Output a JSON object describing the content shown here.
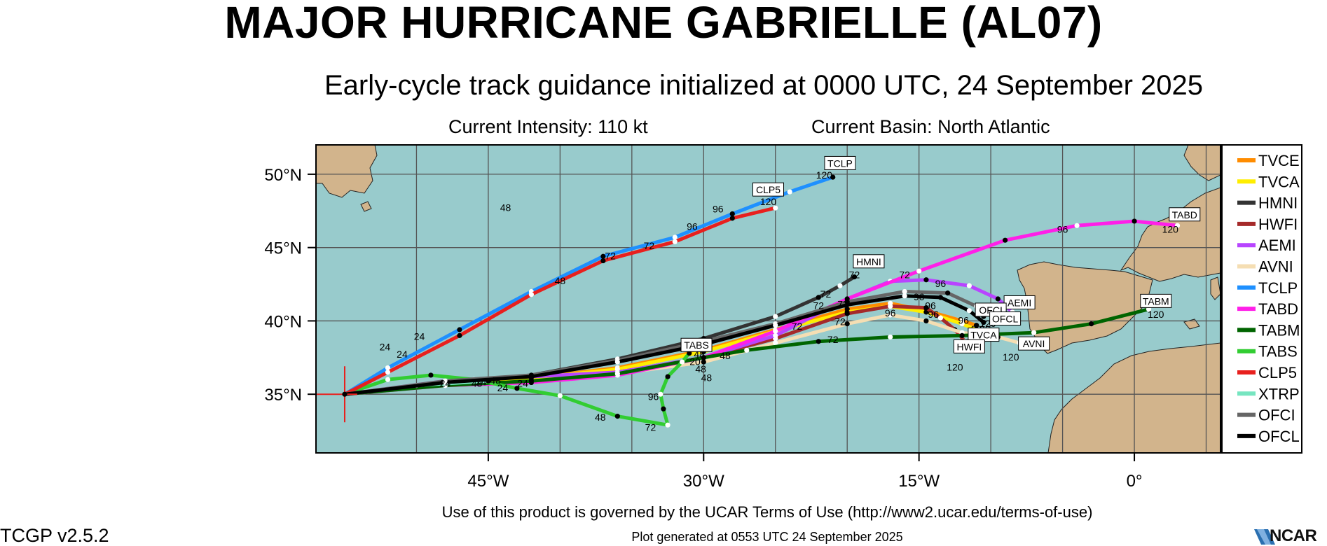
{
  "header": {
    "title": "MAJOR HURRICANE GABRIELLE (AL07)",
    "subtitle": "Early-cycle track guidance initialized at 0000 UTC, 24 September 2025",
    "intensity": "Current Intensity: 110 kt",
    "basin": "Current Basin: North Atlantic"
  },
  "footer": {
    "terms": "Use of this product is governed by the UCAR Terms of Use (http://www2.ucar.edu/terms-of-use)",
    "generated": "Plot generated at 0553 UTC   24 September 2025",
    "version": "TCGP v2.5.2",
    "logo": "NCAR"
  },
  "colors": {
    "ocean": "#98cbcc",
    "land": "#d2b48c",
    "grid": "#555555"
  },
  "map": {
    "lon_range": [
      -57,
      6
    ],
    "lat_range": [
      31,
      52
    ],
    "lon_ticks": [
      {
        "value": -45,
        "label": "45°W"
      },
      {
        "value": -30,
        "label": "30°W"
      },
      {
        "value": -15,
        "label": "15°W"
      },
      {
        "value": 0,
        "label": "0°"
      }
    ],
    "lat_ticks": [
      {
        "value": 50,
        "label": "50°N"
      },
      {
        "value": 45,
        "label": "45°N"
      },
      {
        "value": 40,
        "label": "40°N"
      },
      {
        "value": 35,
        "label": "35°N"
      }
    ],
    "grid_lons": [
      -50,
      -45,
      -40,
      -35,
      -30,
      -25,
      -20,
      -15,
      -10,
      -5,
      0,
      5
    ],
    "grid_lats": [
      35,
      40,
      45,
      50
    ],
    "storm_position": {
      "lon": -55,
      "lat": 35
    }
  },
  "tracks": [
    {
      "name": "TVCE",
      "color": "#ff8c00",
      "points": [
        [
          -55,
          35
        ],
        [
          -48,
          35.7
        ],
        [
          -42,
          36.1
        ],
        [
          -36,
          36.8
        ],
        [
          -30,
          38
        ],
        [
          -25,
          39.4
        ],
        [
          -20,
          40.8
        ],
        [
          -17,
          41.2
        ],
        [
          -14.5,
          40.7
        ],
        [
          -12,
          40.0
        ],
        [
          -11,
          39.7
        ]
      ],
      "labels": [],
      "tag": null
    },
    {
      "name": "TVCA",
      "color": "#ffee00",
      "points": [
        [
          -55,
          35
        ],
        [
          -48,
          35.7
        ],
        [
          -42,
          36.1
        ],
        [
          -36,
          36.7
        ],
        [
          -30,
          37.9
        ],
        [
          -25,
          39.3
        ],
        [
          -20,
          40.6
        ],
        [
          -17,
          41.0
        ],
        [
          -14.5,
          40.6
        ],
        [
          -12,
          39.8
        ],
        [
          -11,
          39.4
        ]
      ],
      "labels": [
        {
          "lon": -17,
          "lat": 40.3,
          "text": "96"
        },
        {
          "lon": -10.9,
          "lat": 38.5,
          "text": "120"
        }
      ],
      "tag": {
        "lon": -10.5,
        "lat": 38.8,
        "text": "TVCA"
      }
    },
    {
      "name": "HMNI",
      "color": "#333333",
      "points": [
        [
          -55,
          35
        ],
        [
          -48,
          35.8
        ],
        [
          -42,
          36.3
        ],
        [
          -36,
          37.4
        ],
        [
          -30,
          38.8
        ],
        [
          -25,
          40.3
        ],
        [
          -22,
          41.6
        ],
        [
          -20.5,
          42.4
        ],
        [
          -19.5,
          43.0
        ]
      ],
      "labels": [
        {
          "lon": -21.5,
          "lat": 41.6,
          "text": "72"
        },
        {
          "lon": -19.5,
          "lat": 42.9,
          "text": "72"
        }
      ],
      "tag": {
        "lon": -18.5,
        "lat": 43.8,
        "text": "HMNI"
      }
    },
    {
      "name": "HWFI",
      "color": "#a52a2a",
      "points": [
        [
          -55,
          35
        ],
        [
          -48,
          35.6
        ],
        [
          -42,
          35.8
        ],
        [
          -36,
          36.5
        ],
        [
          -30,
          37.5
        ],
        [
          -25,
          38.8
        ],
        [
          -20,
          40.5
        ],
        [
          -17,
          41.0
        ],
        [
          -14.5,
          40.9
        ],
        [
          -13.5,
          40.2
        ],
        [
          -12.5,
          39.4
        ],
        [
          -11.8,
          38.6
        ]
      ],
      "labels": [
        {
          "lon": -12.5,
          "lat": 36.6,
          "text": "120"
        }
      ],
      "tag": {
        "lon": -11.5,
        "lat": 38.0,
        "text": "HWFI"
      }
    },
    {
      "name": "AEMI",
      "color": "#b845ff",
      "points": [
        [
          -55,
          35
        ],
        [
          -48,
          35.9
        ],
        [
          -42,
          36.2
        ],
        [
          -36,
          36.5
        ],
        [
          -30,
          37.5
        ],
        [
          -25,
          39.0
        ],
        [
          -20,
          41.5
        ],
        [
          -17,
          42.7
        ],
        [
          -14.5,
          42.8
        ],
        [
          -11.5,
          42.4
        ],
        [
          -9.5,
          41.5
        ],
        [
          -8.5,
          40.6
        ]
      ],
      "labels": [
        {
          "lon": -16,
          "lat": 42.9,
          "text": "72"
        },
        {
          "lon": -13.5,
          "lat": 42.3,
          "text": "96"
        }
      ],
      "tag": {
        "lon": -8.0,
        "lat": 41.0,
        "text": "AEMI"
      }
    },
    {
      "name": "AVNI",
      "color": "#f5deb3",
      "points": [
        [
          -55,
          35
        ],
        [
          -48,
          35.6
        ],
        [
          -42,
          35.8
        ],
        [
          -36,
          36.4
        ],
        [
          -30,
          37.2
        ],
        [
          -25,
          38.5
        ],
        [
          -20,
          39.8
        ],
        [
          -17,
          40.4
        ],
        [
          -14.5,
          40.0
        ],
        [
          -12,
          39.2
        ],
        [
          -9.5,
          38.9
        ],
        [
          -8,
          38.5
        ]
      ],
      "labels": [
        {
          "lon": -8.6,
          "lat": 37.3,
          "text": "120"
        }
      ],
      "tag": {
        "lon": -7.0,
        "lat": 38.2,
        "text": "AVNI"
      }
    },
    {
      "name": "TCLP",
      "color": "#1e90ff",
      "points": [
        [
          -55,
          35
        ],
        [
          -52,
          36.8
        ],
        [
          -47,
          39.4
        ],
        [
          -42,
          42.0
        ],
        [
          -37,
          44.4
        ],
        [
          -32,
          45.7
        ],
        [
          -28,
          47.3
        ],
        [
          -24,
          48.8
        ],
        [
          -21,
          49.8
        ]
      ],
      "labels": [
        {
          "lon": -21.6,
          "lat": 49.7,
          "text": "120"
        }
      ],
      "tag": {
        "lon": -20.5,
        "lat": 50.5,
        "text": "TCLP"
      }
    },
    {
      "name": "TABD",
      "color": "#ff1fe8",
      "points": [
        [
          -55,
          35
        ],
        [
          -48,
          35.6
        ],
        [
          -42,
          35.8
        ],
        [
          -36,
          36.3
        ],
        [
          -30,
          37.5
        ],
        [
          -25,
          39.3
        ],
        [
          -20,
          41.5
        ],
        [
          -15,
          43.4
        ],
        [
          -9,
          45.5
        ],
        [
          -4,
          46.5
        ],
        [
          0,
          46.8
        ],
        [
          3,
          46.5
        ]
      ],
      "labels": [
        {
          "lon": -5,
          "lat": 46.0,
          "text": "96"
        },
        {
          "lon": 2.5,
          "lat": 46.0,
          "text": "120"
        }
      ],
      "tag": {
        "lon": 3.5,
        "lat": 47.0,
        "text": "TABD"
      }
    },
    {
      "name": "TABM",
      "color": "#006400",
      "points": [
        [
          -55,
          35
        ],
        [
          -48,
          35.6
        ],
        [
          -42,
          35.9
        ],
        [
          -36,
          36.4
        ],
        [
          -30,
          37.5
        ],
        [
          -27,
          38.0
        ],
        [
          -22,
          38.6
        ],
        [
          -17,
          38.9
        ],
        [
          -12,
          39.0
        ],
        [
          -7,
          39.2
        ],
        [
          -3,
          39.8
        ],
        [
          1,
          40.8
        ]
      ],
      "labels": [
        {
          "lon": -21,
          "lat": 38.5,
          "text": "72"
        },
        {
          "lon": 1.5,
          "lat": 40.2,
          "text": "120"
        }
      ],
      "tag": {
        "lon": 1.5,
        "lat": 41.1,
        "text": "TABM"
      }
    },
    {
      "name": "TABS",
      "color": "#32cd32",
      "points": [
        [
          -55,
          35
        ],
        [
          -52,
          36.0
        ],
        [
          -49,
          36.3
        ],
        [
          -46,
          36.0
        ],
        [
          -43,
          35.4
        ],
        [
          -40,
          34.9
        ],
        [
          -36,
          33.5
        ],
        [
          -32.5,
          32.9
        ],
        [
          -32.8,
          34.0
        ],
        [
          -33,
          35.0
        ],
        [
          -32.5,
          36.2
        ],
        [
          -31.5,
          37.2
        ],
        [
          -31,
          37.8
        ]
      ],
      "labels": [
        {
          "lon": -37.2,
          "lat": 33.2,
          "text": "48"
        },
        {
          "lon": -33.7,
          "lat": 32.5,
          "text": "72"
        },
        {
          "lon": -33.5,
          "lat": 34.6,
          "text": "96"
        }
      ],
      "tag": {
        "lon": -30.5,
        "lat": 38.1,
        "text": "TABS"
      }
    },
    {
      "name": "CLP5",
      "color": "#e8201e",
      "points": [
        [
          -55,
          35
        ],
        [
          -52,
          36.5
        ],
        [
          -47,
          39.0
        ],
        [
          -42,
          41.8
        ],
        [
          -37,
          44.1
        ],
        [
          -32,
          45.4
        ],
        [
          -28,
          47.0
        ],
        [
          -25,
          47.7
        ]
      ],
      "labels": [
        {
          "lon": -29,
          "lat": 47.4,
          "text": "96"
        },
        {
          "lon": -25.5,
          "lat": 47.9,
          "text": "120"
        }
      ],
      "tag": {
        "lon": -25.5,
        "lat": 48.7,
        "text": "CLP5"
      }
    },
    {
      "name": "XTRP",
      "color": "#76e5c0",
      "points": [
        [
          -55,
          35
        ],
        [
          -50,
          35.6
        ],
        [
          -45,
          35.9
        ]
      ],
      "labels": [],
      "tag": null
    },
    {
      "name": "OFCI",
      "color": "#666666",
      "points": [
        [
          -55,
          35
        ],
        [
          -48,
          35.9
        ],
        [
          -42,
          36.3
        ],
        [
          -36,
          37.3
        ],
        [
          -30,
          38.6
        ],
        [
          -25,
          39.8
        ],
        [
          -20,
          41.3
        ],
        [
          -16,
          42.0
        ],
        [
          -13,
          41.9
        ],
        [
          -11,
          41.0
        ],
        [
          -10.5,
          40.3
        ]
      ],
      "labels": [
        {
          "lon": -15,
          "lat": 41.4,
          "text": "96"
        },
        {
          "lon": -10.2,
          "lat": 39.6,
          "text": "120"
        }
      ],
      "tag": {
        "lon": -10.0,
        "lat": 40.5,
        "text": "OFCI"
      }
    },
    {
      "name": "OFCL",
      "color": "#000000",
      "points": [
        [
          -55,
          35
        ],
        [
          -48,
          35.8
        ],
        [
          -42,
          36.2
        ],
        [
          -36,
          37.2
        ],
        [
          -30,
          38.4
        ],
        [
          -25,
          39.7
        ],
        [
          -20,
          41.1
        ],
        [
          -16,
          41.7
        ],
        [
          -13.5,
          41.6
        ],
        [
          -11.5,
          40.7
        ],
        [
          -10.5,
          39.9
        ]
      ],
      "labels": [
        {
          "lon": -11.9,
          "lat": 39.8,
          "text": "96"
        },
        {
          "lon": -10.6,
          "lat": 39.2,
          "text": "120"
        }
      ],
      "tag": {
        "lon": -9.0,
        "lat": 39.9,
        "text": "OFCL"
      }
    }
  ],
  "hour_labels": [
    {
      "lon": -52.2,
      "lat": 38.0,
      "text": "24"
    },
    {
      "lon": -49.8,
      "lat": 38.7,
      "text": "24"
    },
    {
      "lon": -51.0,
      "lat": 37.5,
      "text": "24"
    },
    {
      "lon": -48.0,
      "lat": 35.5,
      "text": "24"
    },
    {
      "lon": -45.5,
      "lat": 35.6,
      "text": "24"
    },
    {
      "lon": -44.0,
      "lat": 35.2,
      "text": "24"
    },
    {
      "lon": -42.6,
      "lat": 35.5,
      "text": "24"
    },
    {
      "lon": -44.5,
      "lat": 35.7,
      "text": "48"
    },
    {
      "lon": -45.8,
      "lat": 35.5,
      "text": "48"
    },
    {
      "lon": -43.8,
      "lat": 47.5,
      "text": "48"
    },
    {
      "lon": -40.0,
      "lat": 42.5,
      "text": "48"
    },
    {
      "lon": -36.5,
      "lat": 44.2,
      "text": "72"
    },
    {
      "lon": -33.8,
      "lat": 44.9,
      "text": "72"
    },
    {
      "lon": -30.8,
      "lat": 46.2,
      "text": "96"
    },
    {
      "lon": -30.5,
      "lat": 38.1,
      "text": "48"
    },
    {
      "lon": -30.3,
      "lat": 37.5,
      "text": "48"
    },
    {
      "lon": -30.6,
      "lat": 37.0,
      "text": "20"
    },
    {
      "lon": -30.2,
      "lat": 36.5,
      "text": "48"
    },
    {
      "lon": -29.8,
      "lat": 35.9,
      "text": "48"
    },
    {
      "lon": -28.5,
      "lat": 37.4,
      "text": "48"
    },
    {
      "lon": -23.5,
      "lat": 39.4,
      "text": "72"
    },
    {
      "lon": -22.0,
      "lat": 40.8,
      "text": "72"
    },
    {
      "lon": -20.5,
      "lat": 39.7,
      "text": "72"
    },
    {
      "lon": -20.3,
      "lat": 40.9,
      "text": "72"
    },
    {
      "lon": -14.2,
      "lat": 40.8,
      "text": "96"
    },
    {
      "lon": -14.0,
      "lat": 40.2,
      "text": "96"
    },
    {
      "lon": -11.0,
      "lat": 39.2,
      "text": "20"
    }
  ],
  "legend": [
    {
      "name": "TVCE",
      "color": "#ff8c00"
    },
    {
      "name": "TVCA",
      "color": "#ffee00"
    },
    {
      "name": "HMNI",
      "color": "#333333"
    },
    {
      "name": "HWFI",
      "color": "#a52a2a"
    },
    {
      "name": "AEMI",
      "color": "#b845ff"
    },
    {
      "name": "AVNI",
      "color": "#f5deb3"
    },
    {
      "name": "TCLP",
      "color": "#1e90ff"
    },
    {
      "name": "TABD",
      "color": "#ff1fe8"
    },
    {
      "name": "TABM",
      "color": "#006400"
    },
    {
      "name": "TABS",
      "color": "#32cd32"
    },
    {
      "name": "CLP5",
      "color": "#e8201e"
    },
    {
      "name": "XTRP",
      "color": "#76e5c0"
    },
    {
      "name": "OFCI",
      "color": "#666666"
    },
    {
      "name": "OFCL",
      "color": "#000000"
    }
  ]
}
